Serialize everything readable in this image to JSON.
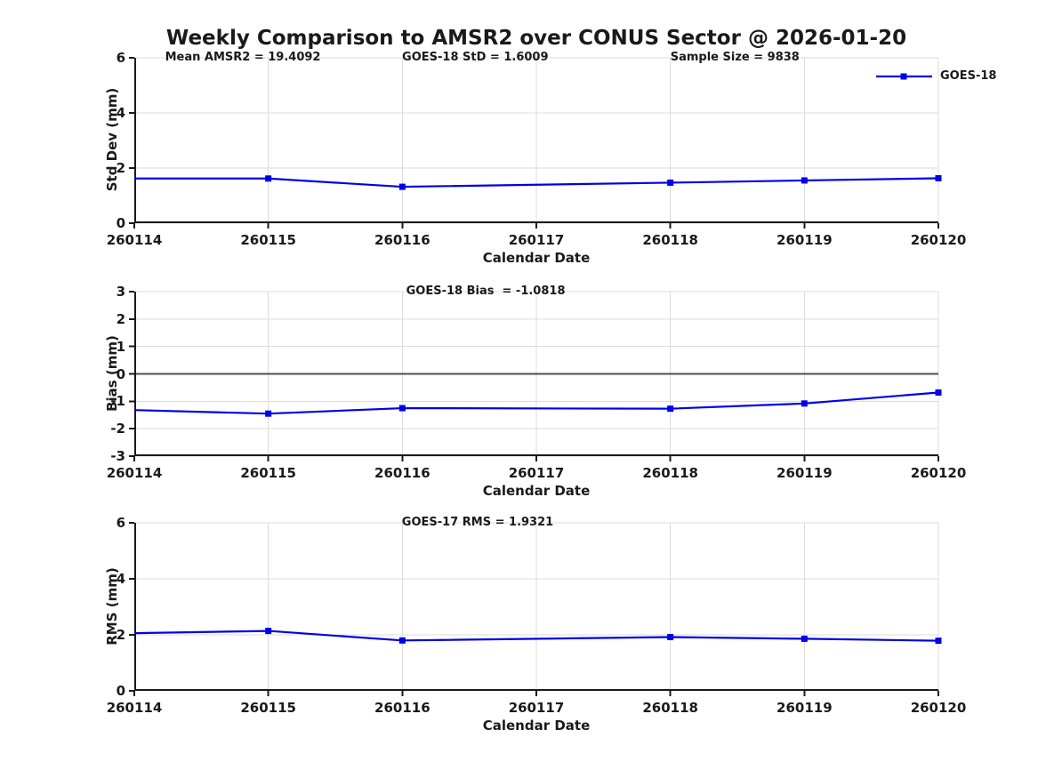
{
  "page": {
    "title": "Weekly Comparison to AMSR2 over CONUS Sector @ 2026-01-20"
  },
  "colors": {
    "series_blue": "#0000e6",
    "axis": "#1a1a1a",
    "grid": "#dcdcdc",
    "zero_line": "#4d4d4d",
    "background": "#ffffff"
  },
  "legend": {
    "label": "GOES-18",
    "marker": "filled-square"
  },
  "chart_data": [
    {
      "type": "line",
      "panel": "std-dev",
      "ylabel": "Std Dev (mm)",
      "xlabel": "Calendar Date",
      "ylim": [
        0,
        6
      ],
      "yticks": [
        0,
        2,
        4,
        6
      ],
      "xlim": [
        260114,
        260120
      ],
      "xticks": [
        "260114",
        "260115",
        "260116",
        "260117",
        "260118",
        "260119",
        "260120"
      ],
      "grid": true,
      "zero_line": false,
      "show_legend": true,
      "annotations": [
        {
          "text": "Mean AMSR2 = 19.4092",
          "xfrac": 0.135
        },
        {
          "text": "GOES-18 StD = 1.6009",
          "xfrac": 0.424
        },
        {
          "text": "Sample Size = 9838",
          "xfrac": 0.747
        }
      ],
      "series": [
        {
          "name": "GOES-18",
          "points": [
            {
              "x": 260114,
              "y": 1.62,
              "marker": false
            },
            {
              "x": 260115,
              "y": 1.62,
              "marker": true
            },
            {
              "x": 260116,
              "y": 1.32,
              "marker": true
            },
            {
              "x": 260118,
              "y": 1.47,
              "marker": true
            },
            {
              "x": 260119,
              "y": 1.55,
              "marker": true
            },
            {
              "x": 260120,
              "y": 1.63,
              "marker": true
            }
          ]
        }
      ]
    },
    {
      "type": "line",
      "panel": "bias",
      "ylabel": "Bias (mm)",
      "xlabel": "Calendar Date",
      "ylim": [
        -3,
        3
      ],
      "yticks": [
        -3,
        -2,
        -1,
        0,
        1,
        2,
        3
      ],
      "xlim": [
        260114,
        260120
      ],
      "xticks": [
        "260114",
        "260115",
        "260116",
        "260117",
        "260118",
        "260119",
        "260120"
      ],
      "grid": true,
      "zero_line": true,
      "show_legend": false,
      "annotations": [
        {
          "text": "GOES-18 Bias  = -1.0818",
          "xfrac": 0.437
        }
      ],
      "series": [
        {
          "name": "GOES-18",
          "points": [
            {
              "x": 260114,
              "y": -1.32,
              "marker": false
            },
            {
              "x": 260115,
              "y": -1.45,
              "marker": true
            },
            {
              "x": 260116,
              "y": -1.25,
              "marker": true
            },
            {
              "x": 260118,
              "y": -1.27,
              "marker": true
            },
            {
              "x": 260119,
              "y": -1.08,
              "marker": true
            },
            {
              "x": 260120,
              "y": -0.68,
              "marker": true
            }
          ]
        }
      ]
    },
    {
      "type": "line",
      "panel": "rms",
      "ylabel": "RMS (mm)",
      "xlabel": "Calendar Date",
      "ylim": [
        0,
        6
      ],
      "yticks": [
        0,
        2,
        4,
        6
      ],
      "xlim": [
        260114,
        260120
      ],
      "xticks": [
        "260114",
        "260115",
        "260116",
        "260117",
        "260118",
        "260119",
        "260120"
      ],
      "grid": true,
      "zero_line": false,
      "show_legend": false,
      "annotations": [
        {
          "text": "GOES-17 RMS = 1.9321",
          "xfrac": 0.427
        }
      ],
      "series": [
        {
          "name": "GOES-18",
          "points": [
            {
              "x": 260114,
              "y": 2.06,
              "marker": false
            },
            {
              "x": 260115,
              "y": 2.14,
              "marker": true
            },
            {
              "x": 260116,
              "y": 1.8,
              "marker": true
            },
            {
              "x": 260118,
              "y": 1.92,
              "marker": true
            },
            {
              "x": 260119,
              "y": 1.86,
              "marker": true
            },
            {
              "x": 260120,
              "y": 1.79,
              "marker": true
            }
          ]
        }
      ]
    }
  ]
}
